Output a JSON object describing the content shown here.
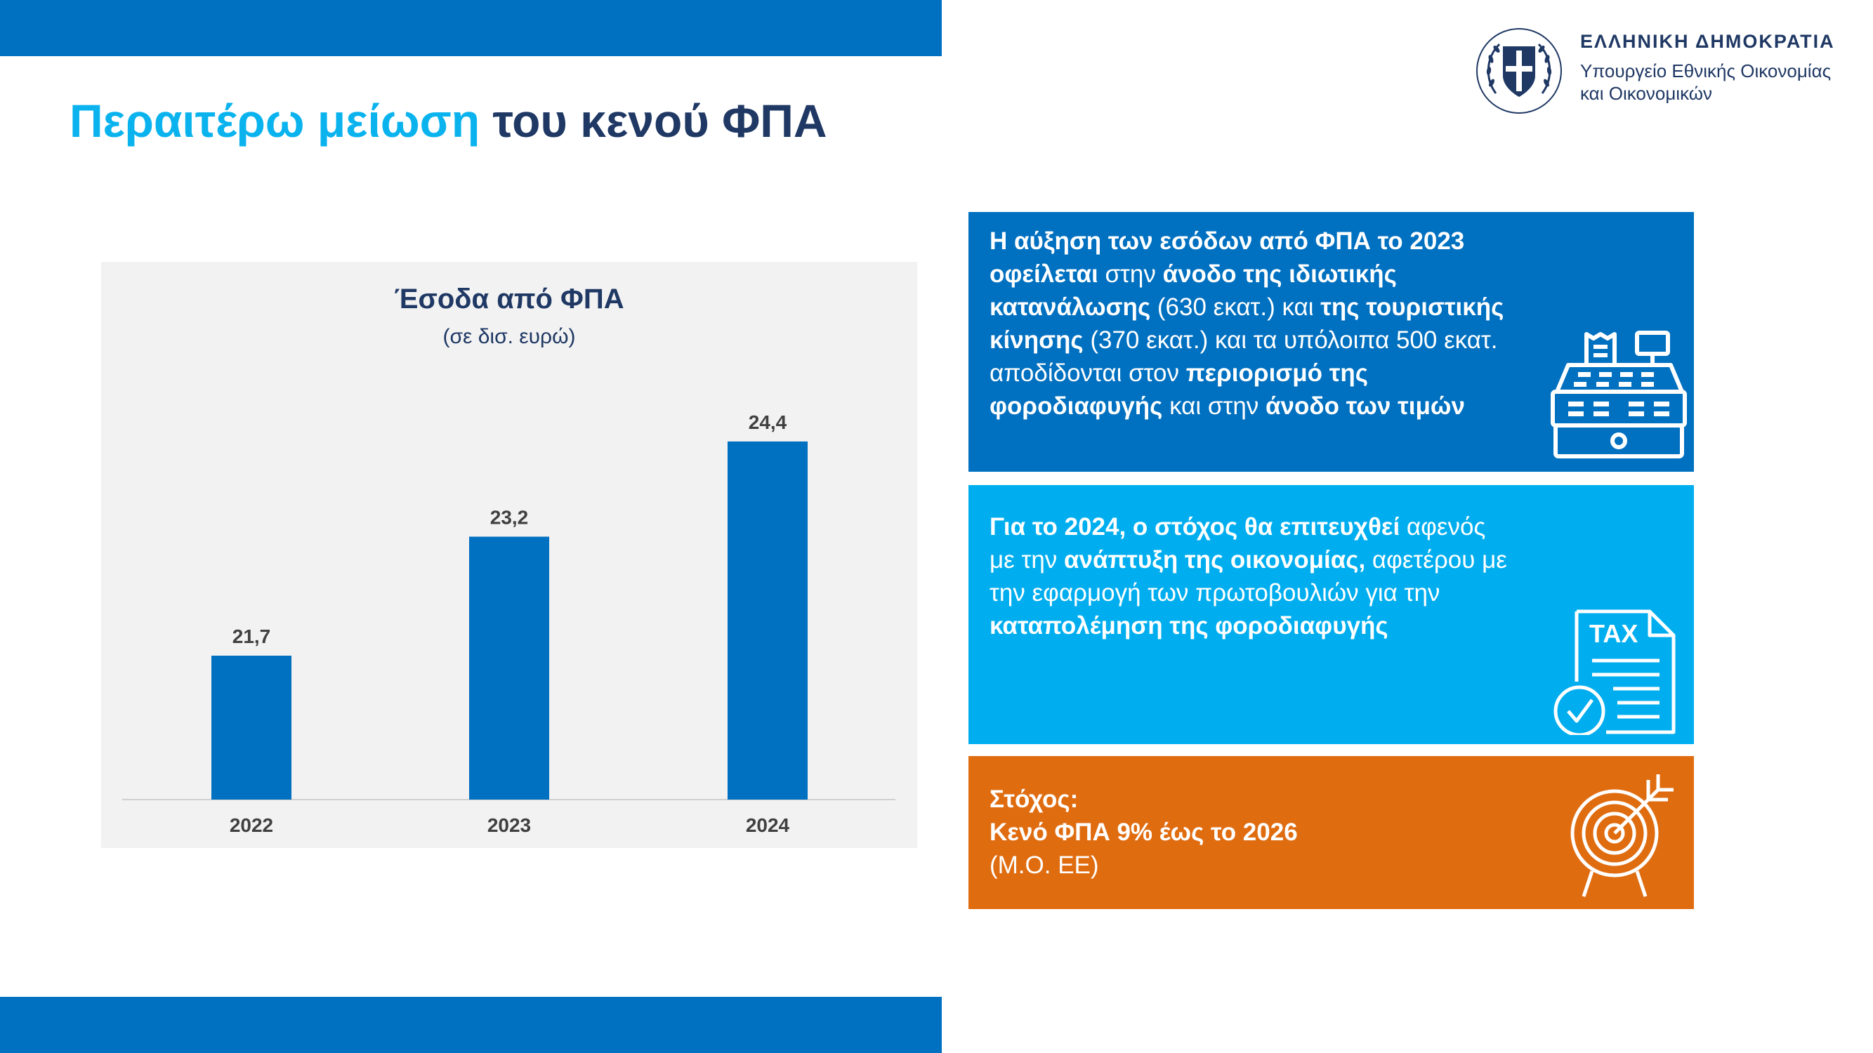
{
  "header": {
    "title_highlight": "Περαιτέρω μείωση",
    "title_rest": "του κενού ΦΠΑ"
  },
  "logo": {
    "org_name": "ΕΛΛΗΝΙΚΗ ΔΗΜΟΚΡΑΤΙΑ",
    "ministry_line1": "Υπουργείο Εθνικής Οικονομίας",
    "ministry_line2": "και Οικονομικών",
    "icon": "greek-state-emblem-icon"
  },
  "chart_data": {
    "type": "bar",
    "title": "Έσοδα από ΦΠΑ",
    "subtitle": "(σε δισ. ευρώ)",
    "categories": [
      "2022",
      "2023",
      "2024"
    ],
    "values": [
      21.7,
      23.2,
      24.4
    ],
    "value_labels": [
      "21,7",
      "23,2",
      "24,4"
    ],
    "xlabel": "",
    "ylabel": "",
    "bar_color": "#0070C0",
    "grid": false,
    "legend": "none"
  },
  "box1": {
    "color": "#0070C0",
    "icon": "cash-register-icon",
    "segments": [
      {
        "t": "Η αύξηση των εσόδων από ΦΠΑ το 2023 ",
        "b": true
      },
      {
        "t": "οφείλεται",
        "b": true
      },
      {
        "t": " στην ",
        "b": false
      },
      {
        "t": "άνοδο της ιδιωτικής κατανάλωσης",
        "b": true
      },
      {
        "t": " (630 εκατ.) και ",
        "b": false
      },
      {
        "t": "της τουριστικής κίνησης",
        "b": true
      },
      {
        "t": " (370 εκατ.) και τα υπόλοιπα 500 εκατ. αποδίδονται στον ",
        "b": false
      },
      {
        "t": "περιορισμό της φοροδιαφυγής",
        "b": true
      },
      {
        "t": " και στην ",
        "b": false
      },
      {
        "t": "άνοδο των τιμών",
        "b": true
      }
    ]
  },
  "box2": {
    "color": "#00AEEF",
    "icon": "tax-document-check-icon",
    "icon_label": "TAX",
    "segments": [
      {
        "t": "Για το 2024, ο στόχος θα επιτευχθεί",
        "b": true
      },
      {
        "t": " αφενός με την ",
        "b": false
      },
      {
        "t": "ανάπτυξη της οικονομίας,",
        "b": true
      },
      {
        "t": " αφετέρου με την εφαρμογή των πρωτοβουλιών για την ",
        "b": false
      },
      {
        "t": "καταπολέμηση της φοροδιαφυγής",
        "b": true
      }
    ]
  },
  "box3": {
    "color": "#E06C10",
    "icon": "target-arrow-icon",
    "segments": [
      {
        "t": "Στόχος:",
        "b": true,
        "br": true
      },
      {
        "t": "Κενό ΦΠΑ 9% έως το 2026",
        "b": true,
        "br": true
      },
      {
        "t": "(Μ.Ο. ΕΕ)",
        "b": false
      }
    ]
  }
}
